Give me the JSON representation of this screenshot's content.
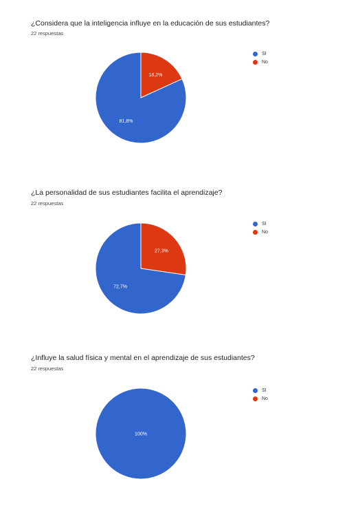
{
  "colors": {
    "si": "#3366cc",
    "no": "#dc3912"
  },
  "chart_data": [
    {
      "type": "pie",
      "title": "¿Considera que la inteligencia influye en la educación de sus estudiantes?",
      "subtitle": "22 respuestas",
      "legend_placement": "right",
      "categories": [
        "SI",
        "No"
      ],
      "values": [
        81.8,
        18.2
      ],
      "labels": [
        "81,8%",
        "18,2%"
      ]
    },
    {
      "type": "pie",
      "title": "¿La personalidad de sus estudiantes facilita el aprendizaje?",
      "subtitle": "22 respuestas",
      "legend_placement": "right",
      "categories": [
        "SI",
        "No"
      ],
      "values": [
        72.7,
        27.3
      ],
      "labels": [
        "72,7%",
        "27,3%"
      ]
    },
    {
      "type": "pie",
      "title": "¿Influye la salud física y mental en el aprendizaje de sus estudiantes?",
      "subtitle": "22 respuestas",
      "legend_placement": "right",
      "categories": [
        "SI",
        "No"
      ],
      "values": [
        100,
        0
      ],
      "labels": [
        "100%",
        ""
      ]
    }
  ]
}
